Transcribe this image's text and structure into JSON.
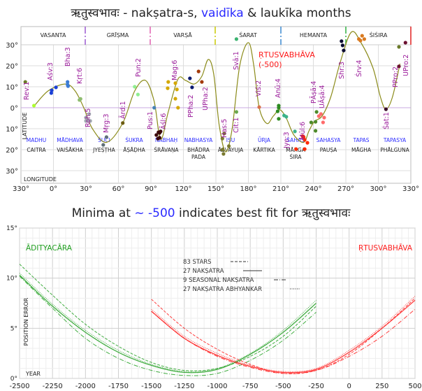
{
  "top_title": {
    "prefix": "ऋतुस्वभावः -  nakṣatra-s, ",
    "highlight": "vaidīka",
    "suffix": " & laukīka months"
  },
  "bottom_title": {
    "prefix": "Minima at ",
    "highlight": "~ -500",
    "suffix": " indicates best fit for ऋतुस्वभावः"
  },
  "colors": {
    "curve": "#8b8b1a",
    "nakshatra_label": "#9a1a9a",
    "vaidika": "#2a2aff",
    "adityacara": "#22a022",
    "rtusvabhava": "#ff2020"
  },
  "chart_data": [
    {
      "type": "scatter",
      "title": "ऋतुस्वभावः -  nakṣatra-s, vaidīka & laukīka months",
      "xlabel": "LONGITUDE",
      "ylabel": "LATITUDE",
      "xlim": [
        -30,
        330
      ],
      "ylim": [
        -30,
        30
      ],
      "grid": true,
      "x_ticks": [
        "330°",
        "0°",
        "30°",
        "60°",
        "90°",
        "120°",
        "150°",
        "180°",
        "210°",
        "240°",
        "270°",
        "300°",
        "330°"
      ],
      "y_ticks": [
        "30°",
        "20°",
        "10°",
        "0°",
        "10°",
        "20°",
        "30°"
      ],
      "annotation": {
        "line1": "ṚTUSVABHĀVA",
        "line2": "(-500)"
      },
      "seasons": [
        "VASANTA",
        "GRĪṢMA",
        "VARṢĀ",
        "ŚARAT",
        "HEMANTA",
        "ŚIŚIRA"
      ],
      "season_colors": [
        "#9b59d0",
        "#e060b0",
        "#c8c800",
        "#3a88d0",
        "#30b040",
        "#e02020"
      ],
      "vaidika_months": [
        "MADHU",
        "MĀDHAVA",
        "ŚUCI",
        "ŚUKRA",
        "NABHAḤ",
        "NABHASYA",
        "IṢU",
        "ŪRJA",
        "SAHAS",
        "SAHASYA",
        "TAPAS",
        "TAPASYA"
      ],
      "laukika_months": [
        [
          "CAITRA"
        ],
        [
          "VAIŚĀKHA"
        ],
        [
          "JYEṢṬHA"
        ],
        [
          "ĀṢĀḌHA"
        ],
        [
          "ŚRĀVAṆA"
        ],
        [
          "BHĀDRA",
          "PADA"
        ],
        [
          "ĀŚVAYUJA"
        ],
        [
          "KĀRTIKA"
        ],
        [
          "MĀRGA",
          "ŚIRA"
        ],
        [
          "PAUṢA"
        ],
        [
          "MĀGHA"
        ],
        [
          "PHĀLGUNA"
        ]
      ],
      "nakshatra_labels": [
        "Rev:1",
        "Aśv:3",
        "Bha:3",
        "Kṛt:6",
        "Roh:5",
        "Mṛg:3",
        "Ārd:1",
        "Pun:2",
        "Pus:1",
        "Āśl:6",
        "Mag:6",
        "PPha:2",
        "UPha:2",
        "Has:5",
        "Cit:1",
        "Svā:1",
        "Viś:2",
        "Anū:4",
        "Jye:3",
        "Mūl:6",
        "PĀṣā:4",
        "UĀṣā:4",
        "Shr:3",
        "Śrv:4",
        "Śat:1",
        "PPro:2",
        "UPro:2"
      ],
      "curve": [
        [
          -18,
          0.7
        ],
        [
          -5,
          8
        ],
        [
          11,
          11.3
        ],
        [
          20,
          8
        ],
        [
          28,
          0
        ],
        [
          36,
          -10
        ],
        [
          49,
          -16.5
        ],
        [
          64,
          -7.3
        ],
        [
          75,
          8
        ],
        [
          85,
          13
        ],
        [
          93,
          3
        ],
        [
          99,
          -15
        ],
        [
          106,
          -2
        ],
        [
          115,
          13.7
        ],
        [
          122,
          13
        ],
        [
          130,
          11.3
        ],
        [
          137,
          15
        ],
        [
          143,
          23
        ],
        [
          148,
          16
        ],
        [
          153,
          -8
        ],
        [
          159,
          -21
        ],
        [
          165,
          -10
        ],
        [
          172,
          20
        ],
        [
          180,
          31
        ],
        [
          185,
          20
        ],
        [
          190,
          0
        ],
        [
          197,
          -7.5
        ],
        [
          203,
          -4
        ],
        [
          209,
          -1
        ],
        [
          215,
          -5
        ],
        [
          222,
          -13
        ],
        [
          231,
          -16.5
        ],
        [
          236,
          -11
        ],
        [
          241,
          -6.5
        ],
        [
          248,
          -4
        ],
        [
          256,
          5
        ],
        [
          265,
          22
        ],
        [
          275,
          36
        ],
        [
          284,
          31
        ],
        [
          295,
          19
        ],
        [
          302,
          5
        ],
        [
          307,
          -0.7
        ],
        [
          313,
          5
        ],
        [
          320,
          21
        ]
      ],
      "stars": [
        [
          -26,
          12.3,
          "#6b7a2a"
        ],
        [
          -18,
          1,
          "#adff2f"
        ],
        [
          -2,
          7,
          "#1a3fd6"
        ],
        [
          -1.6,
          8.3,
          "#1a3fd6"
        ],
        [
          2.3,
          9.7,
          "#1a3fd6"
        ],
        [
          13,
          12.3,
          "#3a7bd5"
        ],
        [
          13,
          11,
          "#3a7bd5"
        ],
        [
          13.5,
          10.3,
          "#3a7bd5"
        ],
        [
          24,
          3.7,
          "#8fbc6f"
        ],
        [
          25,
          4.2,
          "#8fbc6f"
        ],
        [
          30,
          -4.7,
          "#a0aab0"
        ],
        [
          33,
          -3,
          "#a0aab0"
        ],
        [
          30,
          -6.3,
          "#a0aab0"
        ],
        [
          34,
          -6.3,
          "#a0aab0"
        ],
        [
          32,
          -6,
          "#a0aab0"
        ],
        [
          49,
          -14,
          "#5f6f78"
        ],
        [
          46,
          -17.7,
          "#5f6f78"
        ],
        [
          64,
          -7.3,
          "#6b5a10"
        ],
        [
          75,
          10,
          "#90ee90"
        ],
        [
          78,
          6.3,
          "#90ee90"
        ],
        [
          93,
          0,
          "#4682b4"
        ],
        [
          95,
          -13,
          "#3b0a0a"
        ],
        [
          97,
          -11.7,
          "#3b0a0a"
        ],
        [
          99,
          -11.3,
          "#3b0a0a"
        ],
        [
          96.5,
          -14.7,
          "#3b0a0a"
        ],
        [
          98,
          -14.3,
          "#3b0a0a"
        ],
        [
          98,
          -12,
          "#3b0a0a"
        ],
        [
          106,
          12.3,
          "#d4a800"
        ],
        [
          105.5,
          9.3,
          "#d4a800"
        ],
        [
          112.6,
          11.7,
          "#d4a800"
        ],
        [
          114,
          8.7,
          "#d4a800"
        ],
        [
          112.6,
          4.3,
          "#d4a800"
        ],
        [
          115,
          0,
          "#d4a800"
        ],
        [
          126,
          14,
          "#0b1a6e"
        ],
        [
          128,
          9.7,
          "#0b1a6e"
        ],
        [
          134,
          17.3,
          "#a33a0a"
        ],
        [
          137,
          12.3,
          "#a33a0a"
        ],
        [
          156,
          -14.7,
          "#7a7a30"
        ],
        [
          157.7,
          -12.3,
          "#7a7a30"
        ],
        [
          156,
          -20,
          "#7a7a30"
        ],
        [
          157,
          -22,
          "#7a7a30"
        ],
        [
          162,
          -18.3,
          "#7a7a30"
        ],
        [
          169,
          -2,
          "#6aa84f"
        ],
        [
          169,
          32.7,
          "#3cb371"
        ],
        [
          190,
          0.3,
          "#d9734a"
        ],
        [
          208,
          1,
          "#2e8b22"
        ],
        [
          208,
          0,
          "#2e8b22"
        ],
        [
          207,
          -1.7,
          "#2e8b22"
        ],
        [
          208,
          -5.3,
          "#2e8b22"
        ],
        [
          213,
          -3.7,
          "#3cb38a"
        ],
        [
          215,
          -4.3,
          "#3cb38a"
        ],
        [
          223,
          -11.3,
          "#3cb38a"
        ],
        [
          224,
          -19.7,
          "#ff2a00"
        ],
        [
          232,
          -19.7,
          "#ff2a00"
        ],
        [
          231,
          -14,
          "#ff2a00"
        ],
        [
          232,
          -15.3,
          "#ff2a00"
        ],
        [
          234.5,
          -16.7,
          "#ff2a00"
        ],
        [
          230,
          -13.5,
          "#ff2a00"
        ],
        [
          238,
          -7,
          "#4d8a2a"
        ],
        [
          242,
          -6.7,
          "#4d8a2a"
        ],
        [
          243,
          -2,
          "#4d8a2a"
        ],
        [
          242,
          -11,
          "#4d8a2a"
        ],
        [
          245,
          -4,
          "#ff6b6b"
        ],
        [
          247,
          -3,
          "#ff6b6b"
        ],
        [
          250,
          -4.7,
          "#ff6b6b"
        ],
        [
          249,
          -7,
          "#ff6b6b"
        ],
        [
          266,
          31.7,
          "#0b0b30"
        ],
        [
          267,
          29.7,
          "#0b0b30"
        ],
        [
          268,
          27.3,
          "#0b0b30"
        ],
        [
          282,
          32.7,
          "#d97a20"
        ],
        [
          285,
          34.3,
          "#d97a20"
        ],
        [
          287,
          32.7,
          "#d97a20"
        ],
        [
          283.5,
          32,
          "#d97a20"
        ],
        [
          319,
          29,
          "#6b7a2a"
        ],
        [
          325,
          31,
          "#6b1030"
        ],
        [
          319,
          19.7,
          "#6b1030"
        ],
        [
          307,
          -0.7,
          "#3a0a2a"
        ]
      ]
    },
    {
      "type": "line",
      "title": "Minima at ~ -500 indicates best fit for ऋतुस्वभावः",
      "xlabel": "YEAR",
      "ylabel": "POSITION ERROR",
      "xlim": [
        -2500,
        500
      ],
      "ylim": [
        0,
        15
      ],
      "grid": true,
      "x_ticks": [
        "-2500",
        "-2250",
        "-2000",
        "-1750",
        "-1500",
        "-1250",
        "-1000",
        "-750",
        "-500",
        "-250",
        "0",
        "250",
        "500"
      ],
      "y_ticks": [
        "15°",
        "10°",
        "5°",
        "0°"
      ],
      "group_labels": {
        "green": "ĀDITYACĀRA",
        "red": "ṚTUSVABHĀVA"
      },
      "legend": {
        "placement": "top-center",
        "entries": [
          "83 STARS",
          "27 NAKṢATRA",
          "9 SEASONAL NAKṢATRA",
          "27 NAKṢATRA ABHYANKAR"
        ]
      },
      "x_green": [
        -2500,
        -2250,
        -2000,
        -1750,
        -1500,
        -1250,
        -1000,
        -750,
        -500,
        -250
      ],
      "x_red": [
        -1500,
        -1250,
        -1000,
        -750,
        -500,
        -250,
        0,
        250,
        500
      ],
      "series": [
        {
          "name": "ĀDITYACĀRA 83 STARS",
          "group": "green",
          "style": "dashed",
          "values": [
            11.4,
            8.3,
            5.4,
            3.2,
            1.6,
            0.8,
            1.0,
            2.2,
            4.2,
            7.2
          ]
        },
        {
          "name": "ĀDITYACĀRA 27 NAKṢATRA",
          "group": "green",
          "style": "solid",
          "values": [
            10.3,
            7.2,
            4.6,
            2.6,
            1.3,
            0.6,
            0.9,
            2.4,
            4.6,
            7.5
          ]
        },
        {
          "name": "ĀDITYACĀRA 9 SEASONAL NAKṢATRA",
          "group": "green",
          "style": "dashdot",
          "values": [
            10.2,
            7.0,
            4.0,
            2.0,
            0.8,
            0.3,
            0.5,
            1.8,
            3.8,
            6.6
          ]
        },
        {
          "name": "ĀDITYACĀRA 27 NAKṢATRA ABHYANKAR",
          "group": "green",
          "style": "dotted",
          "values": [
            10.5,
            7.4,
            4.8,
            2.8,
            1.4,
            0.7,
            1.0,
            2.5,
            4.8,
            7.8
          ]
        },
        {
          "name": "ṚTUSVABHĀVA 83 STARS",
          "group": "red",
          "style": "dashed",
          "values": [
            7.9,
            5.0,
            2.9,
            1.4,
            0.5,
            0.8,
            2.4,
            5.0,
            8.0
          ]
        },
        {
          "name": "ṚTUSVABHĀVA 27 NAKṢATRA",
          "group": "red",
          "style": "solid",
          "values": [
            6.7,
            4.0,
            2.3,
            1.2,
            0.6,
            0.9,
            2.6,
            5.0,
            7.8
          ]
        },
        {
          "name": "ṚTUSVABHĀVA 9 SEASONAL NAKṢATRA",
          "group": "red",
          "style": "dashdot",
          "values": [
            6.7,
            4.0,
            2.2,
            1.1,
            0.5,
            0.8,
            2.2,
            4.2,
            6.9
          ]
        },
        {
          "name": "ṚTUSVABHĀVA 27 NAKṢATRA ABHYANKAR",
          "group": "red",
          "style": "dotted",
          "values": [
            6.9,
            4.2,
            2.5,
            1.3,
            0.7,
            1.0,
            2.8,
            5.2,
            8.2
          ]
        }
      ]
    }
  ]
}
